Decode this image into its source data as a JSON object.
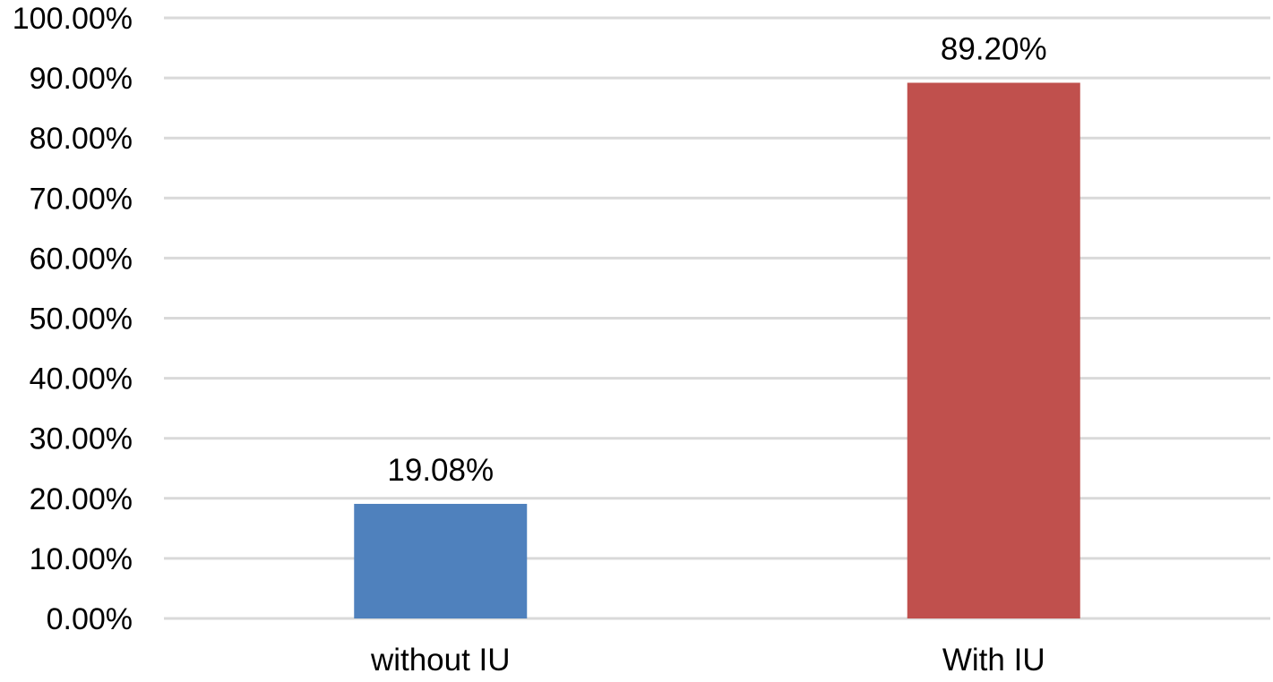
{
  "chart_data": {
    "type": "bar",
    "categories": [
      "without IU",
      "With IU"
    ],
    "values": [
      19.08,
      89.2
    ],
    "data_labels": [
      "19.08%",
      "89.20%"
    ],
    "bar_colors": [
      "#4f81bd",
      "#c0504d"
    ],
    "ylim": [
      0,
      100
    ],
    "y_ticks": [
      0,
      10,
      20,
      30,
      40,
      50,
      60,
      70,
      80,
      90,
      100
    ],
    "y_tick_labels": [
      "0.00%",
      "10.00%",
      "20.00%",
      "30.00%",
      "40.00%",
      "50.00%",
      "60.00%",
      "70.00%",
      "80.00%",
      "90.00%",
      "100.00%"
    ],
    "grid": true,
    "legend": "none",
    "gridline_color": "#d9d9d9"
  }
}
